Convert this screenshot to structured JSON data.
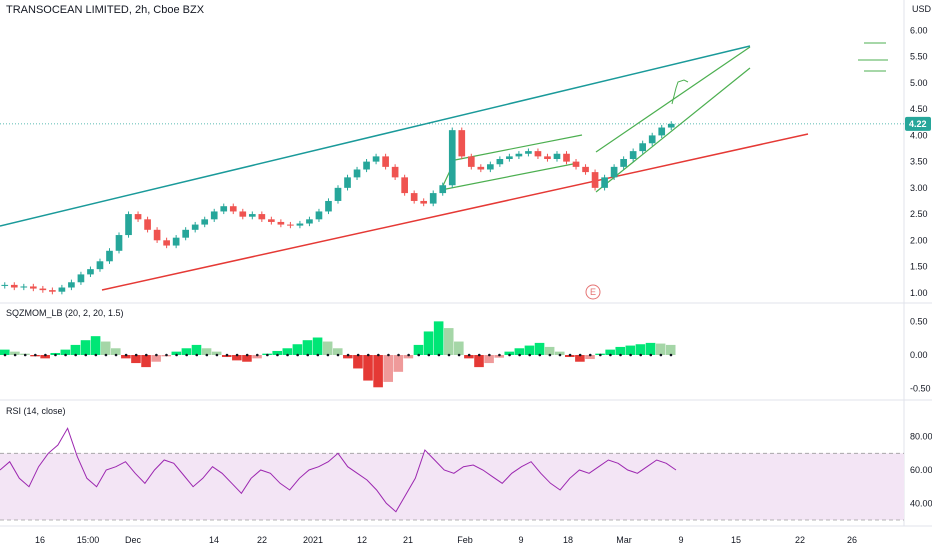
{
  "header": {
    "title": "TRANSOCEAN LIMITED, 2h, Cboe BZX",
    "currency": "USD"
  },
  "colors": {
    "up": "#26a69a",
    "down": "#ef5350",
    "channel_top": "#1a9a9a",
    "channel_bottom": "#e53935",
    "pattern": "#4caf50",
    "mom_up_strong": "#00e676",
    "mom_up_weak": "#a5d6a7",
    "mom_down_strong": "#e53935",
    "mom_down_weak": "#ef9a9a",
    "rsi_line": "#9c27b0",
    "rsi_band": "#f3e5f5",
    "price_tag": "#26a69a"
  },
  "price_pane": {
    "y_ticks": [
      "6.00",
      "5.50",
      "5.00",
      "4.50",
      "4.00",
      "3.50",
      "3.00",
      "2.50",
      "2.00",
      "1.50",
      "1.00"
    ],
    "last_price": "4.22",
    "earnings_marker": "E"
  },
  "momentum_pane": {
    "title": "SQZMOM_LB (20, 2, 20, 1.5)",
    "y_ticks": [
      "0.50",
      "0.00",
      "-0.50"
    ]
  },
  "rsi_pane": {
    "title": "RSI (14, close)",
    "y_ticks": [
      "80.00",
      "60.00",
      "40.00"
    ]
  },
  "x_axis": {
    "labels": [
      "16",
      "15:00",
      "Dec",
      "14",
      "22",
      "2021",
      "12",
      "21",
      "Feb",
      "9",
      "18",
      "Mar",
      "9",
      "15",
      "22",
      "26"
    ]
  },
  "chart_data": [
    {
      "type": "candlestick",
      "title": "TRANSOCEAN LIMITED, 2h, Cboe BZX",
      "ylabel": "USD",
      "ylim": [
        0.9,
        6.2
      ],
      "x_ticks": [
        "16",
        "15:00",
        "Dec",
        "14",
        "22",
        "2021",
        "12",
        "21",
        "Feb",
        "9",
        "18",
        "Mar",
        "9",
        "15",
        "22",
        "26"
      ],
      "series": [
        {
          "values": [
            1.15,
            1.1,
            1.12,
            1.08,
            1.05,
            1.02,
            1.1,
            1.2,
            1.35,
            1.45,
            1.6,
            1.8,
            2.1,
            2.5,
            2.4,
            2.2,
            2.0,
            1.9,
            2.05,
            2.2,
            2.3,
            2.4,
            2.55,
            2.65,
            2.55,
            2.45,
            2.5,
            2.4,
            2.35,
            2.3,
            2.28,
            2.32,
            2.4,
            2.55,
            2.75,
            3.0,
            3.2,
            3.35,
            3.5,
            3.6,
            3.4,
            3.2,
            2.9,
            2.75,
            2.7,
            2.9,
            3.05,
            4.1,
            3.6,
            3.4,
            3.35,
            3.45,
            3.55,
            3.6,
            3.65,
            3.7,
            3.6,
            3.55,
            3.65,
            3.5,
            3.4,
            3.3,
            3.0,
            3.2,
            3.4,
            3.55,
            3.7,
            3.85,
            4.0,
            4.15,
            4.22
          ]
        }
      ],
      "last_price": 4.22
    },
    {
      "type": "bar",
      "title": "SQZMOM_LB (20, 2, 20, 1.5)",
      "ylim": [
        -0.55,
        0.55
      ],
      "series": [
        {
          "values": [
            0.08,
            0.05,
            0.02,
            -0.02,
            -0.05,
            0.03,
            0.08,
            0.15,
            0.22,
            0.28,
            0.2,
            0.1,
            -0.05,
            -0.12,
            -0.18,
            -0.1,
            -0.02,
            0.05,
            0.1,
            0.15,
            0.1,
            0.05,
            -0.03,
            -0.08,
            -0.1,
            -0.05,
            0.02,
            0.06,
            0.1,
            0.16,
            0.22,
            0.26,
            0.2,
            0.1,
            -0.05,
            -0.2,
            -0.38,
            -0.48,
            -0.4,
            -0.25,
            -0.05,
            0.15,
            0.35,
            0.5,
            0.4,
            0.2,
            -0.05,
            -0.18,
            -0.12,
            -0.04,
            0.05,
            0.1,
            0.14,
            0.18,
            0.12,
            0.05,
            -0.03,
            -0.1,
            -0.06,
            0.02,
            0.08,
            0.12,
            0.14,
            0.16,
            0.18,
            0.17,
            0.15
          ]
        }
      ]
    },
    {
      "type": "line",
      "title": "RSI (14, close)",
      "ylim": [
        30,
        90
      ],
      "series": [
        {
          "values": [
            60,
            65,
            55,
            50,
            62,
            70,
            75,
            85,
            68,
            55,
            50,
            60,
            62,
            65,
            58,
            52,
            60,
            66,
            64,
            57,
            50,
            55,
            62,
            58,
            52,
            46,
            55,
            60,
            58,
            52,
            48,
            55,
            60,
            62,
            65,
            70,
            62,
            58,
            54,
            48,
            40,
            35,
            45,
            55,
            72,
            66,
            60,
            58,
            62,
            63,
            60,
            56,
            52,
            58,
            62,
            65,
            58,
            52,
            48,
            55,
            60,
            58,
            62,
            66,
            64,
            60,
            58,
            62,
            66,
            64,
            60
          ]
        }
      ],
      "band": [
        30,
        70
      ]
    }
  ]
}
